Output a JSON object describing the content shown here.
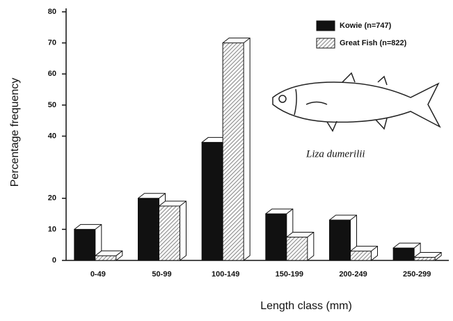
{
  "chart_data": {
    "type": "bar",
    "x_label": "Length class (mm)",
    "y_label": "Percentage frequency",
    "annotation": "Liza dumerilii",
    "categories": [
      "0-49",
      "50-99",
      "100-149",
      "150-199",
      "200-249",
      "250-299"
    ],
    "series": [
      {
        "name": "Kowie (n=747)",
        "color": "#111111",
        "values": [
          10,
          20,
          38,
          15,
          13,
          4
        ]
      },
      {
        "name": "Great Fish (n=822)",
        "color": "#8a8a8a",
        "values": [
          1.5,
          17.5,
          70,
          7.5,
          3,
          1
        ]
      }
    ],
    "ylim": [
      0,
      80
    ],
    "yticks": [
      0,
      10,
      20,
      40,
      50,
      60,
      70,
      80
    ],
    "legend": "top-right"
  }
}
